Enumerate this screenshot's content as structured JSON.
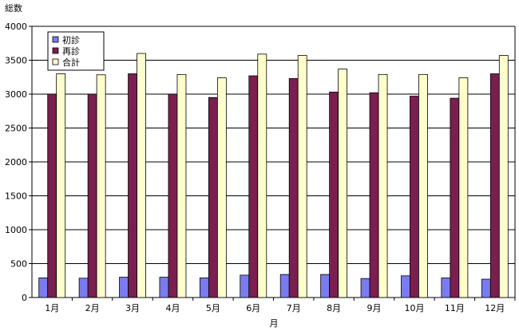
{
  "chart_data": {
    "type": "bar",
    "title": "",
    "ylabel": "総数",
    "xlabel": "月",
    "ylim": [
      0,
      4000
    ],
    "yticks": [
      0,
      500,
      1000,
      1500,
      2000,
      2500,
      3000,
      3500,
      4000
    ],
    "grid": true,
    "legend_position": "top-left",
    "categories": [
      "1月",
      "2月",
      "3月",
      "4月",
      "5月",
      "6月",
      "7月",
      "8月",
      "9月",
      "10月",
      "11月",
      "12月"
    ],
    "series": [
      {
        "name": "初診",
        "color": "#7b7bf0",
        "values": [
          290,
          285,
          300,
          300,
          290,
          330,
          340,
          340,
          280,
          320,
          290,
          270
        ]
      },
      {
        "name": "再診",
        "color": "#7a1f4f",
        "values": [
          3000,
          3000,
          3300,
          3000,
          2950,
          3270,
          3230,
          3030,
          3020,
          2970,
          2940,
          3300
        ]
      },
      {
        "name": "合計",
        "color": "#ffffcc",
        "values": [
          3300,
          3285,
          3600,
          3290,
          3240,
          3590,
          3570,
          3370,
          3290,
          3290,
          3240,
          3570
        ]
      }
    ]
  }
}
